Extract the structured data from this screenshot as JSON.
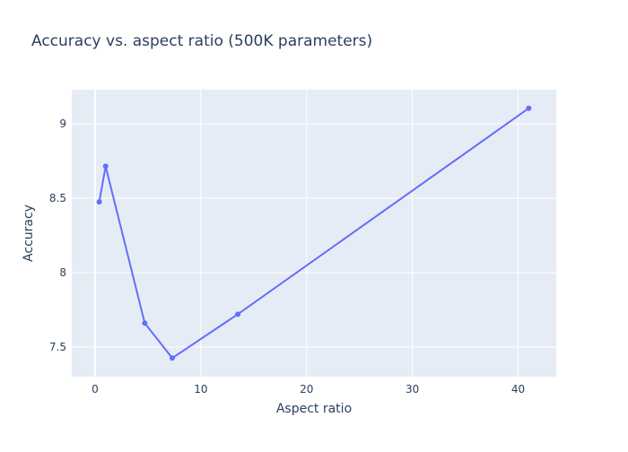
{
  "chart_data": {
    "type": "line",
    "title": "Accuracy vs. aspect ratio (500K parameters)",
    "xlabel": "Aspect ratio",
    "ylabel": "Accuracy",
    "xlim": [
      -2.2,
      43.6
    ],
    "ylim": [
      7.3,
      9.23
    ],
    "xticks": [
      0,
      10,
      20,
      30,
      40
    ],
    "yticks": [
      7.5,
      8,
      8.5,
      9
    ],
    "xtick_labels": [
      "0",
      "10",
      "20",
      "30",
      "40"
    ],
    "ytick_labels": [
      "7.5",
      "8",
      "8.5",
      "9"
    ],
    "grid": true,
    "series": [
      {
        "x": [
          0.4,
          1.0,
          4.7,
          7.3,
          13.5,
          41.0
        ],
        "y": [
          8.475,
          8.715,
          7.66,
          7.425,
          7.72,
          9.105
        ]
      }
    ],
    "colors": {
      "plot_bg": "#E5ECF6",
      "grid": "#ffffff",
      "line": "#636EFA",
      "text": "#2a3f5f"
    }
  }
}
